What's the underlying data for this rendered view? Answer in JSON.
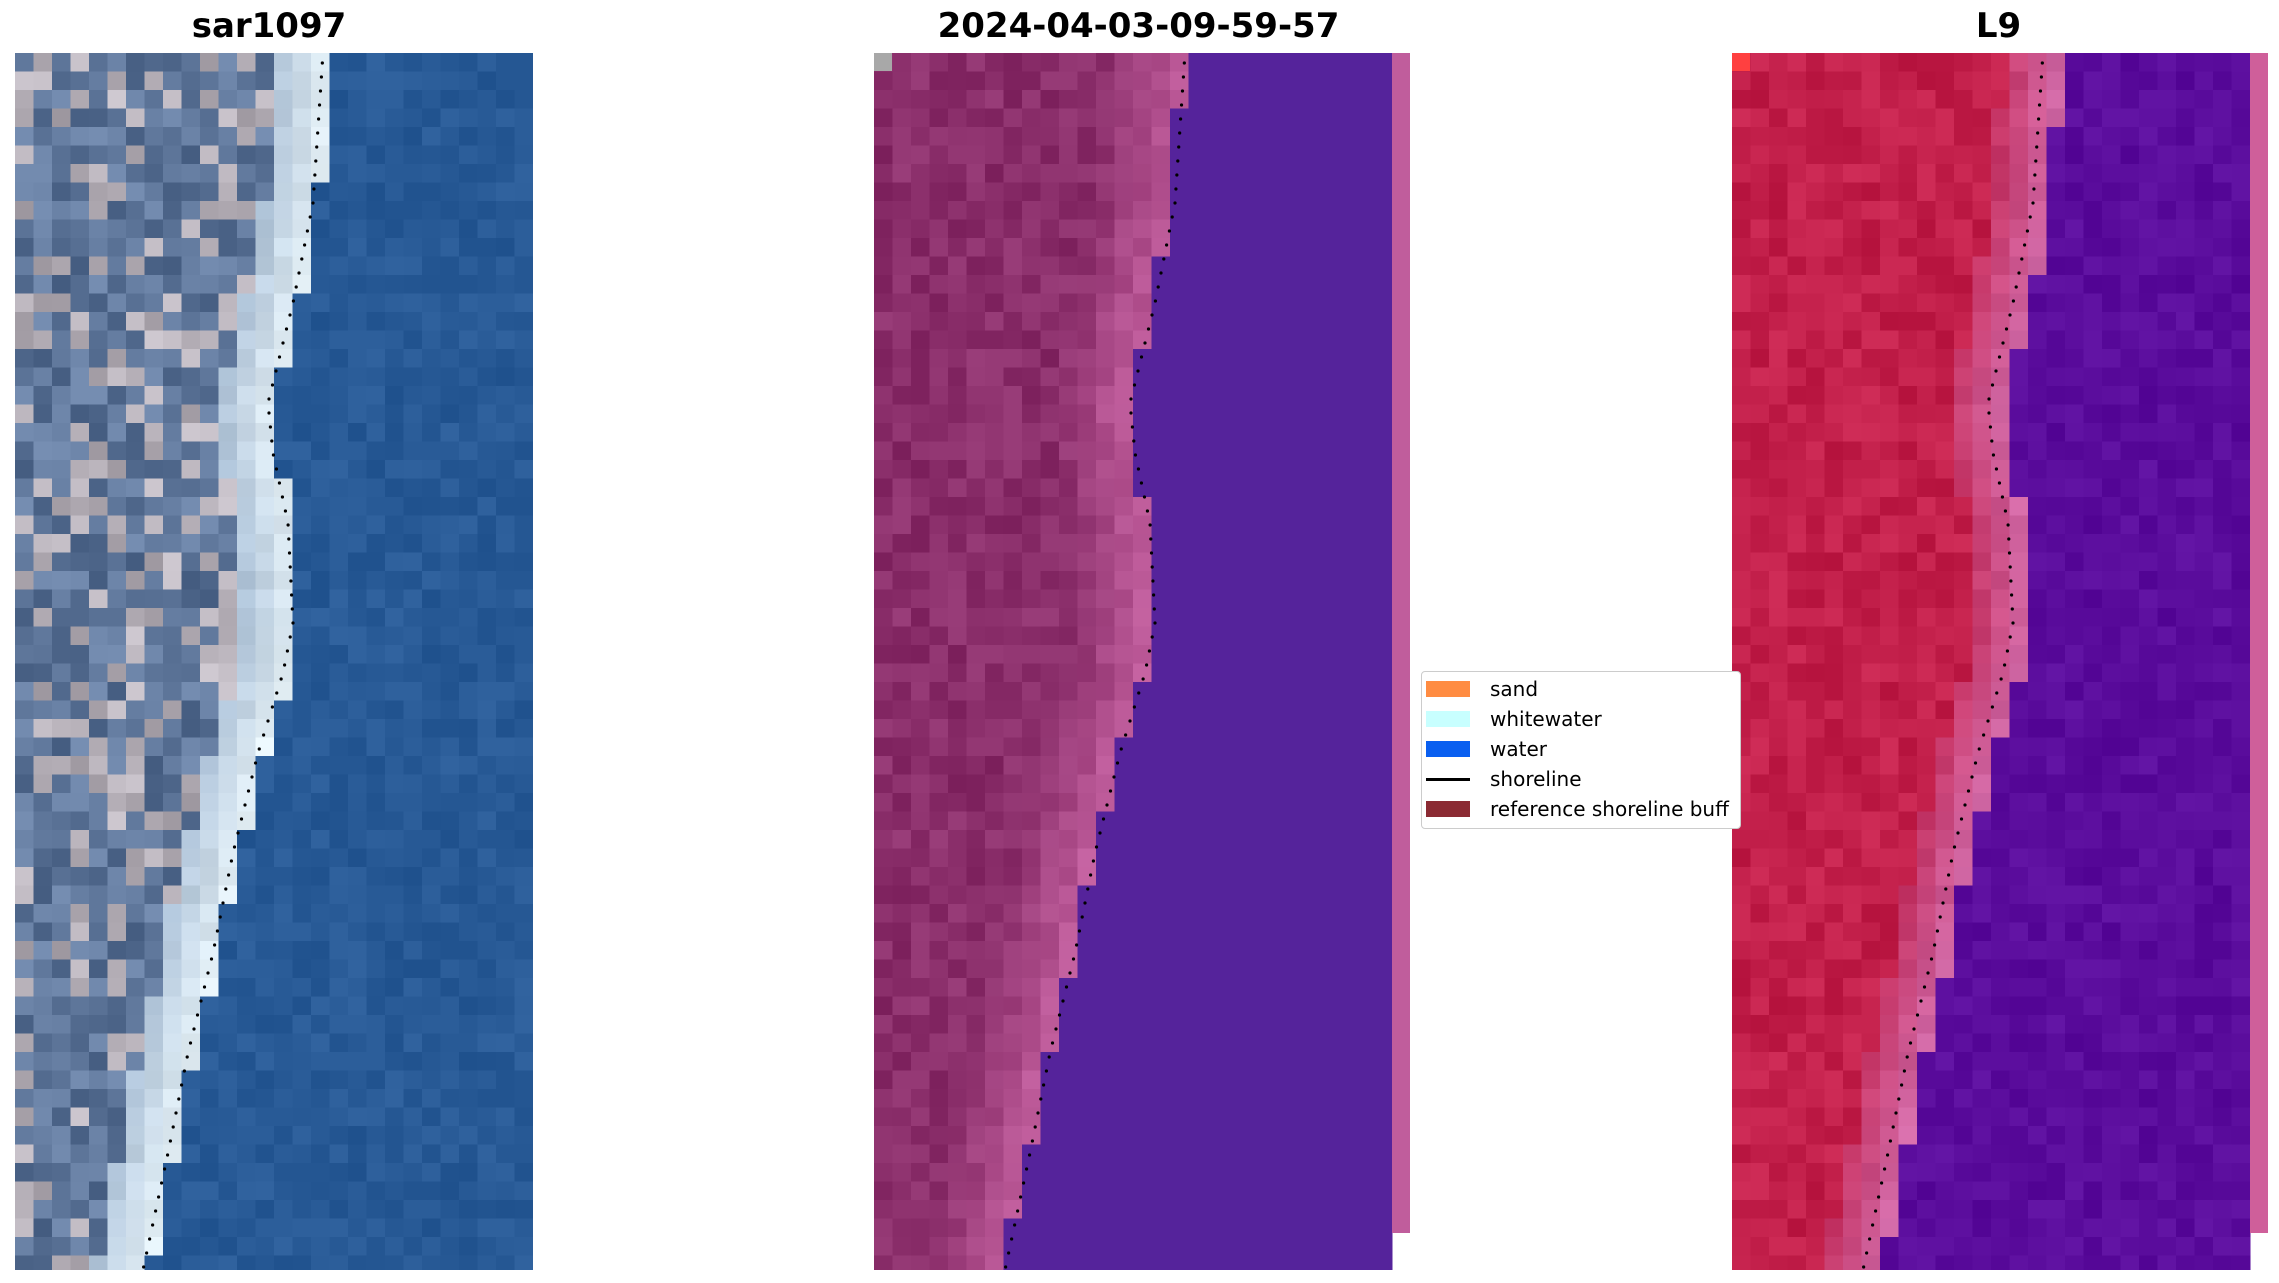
{
  "panels": [
    {
      "id": "rgb",
      "title": "sar1097"
    },
    {
      "id": "classified",
      "title": "2024-04-03-09-59-57"
    },
    {
      "id": "index",
      "title": "L9"
    }
  ],
  "legend": {
    "items": [
      {
        "label": "sand",
        "color": "#ff8c42",
        "kind": "patch"
      },
      {
        "label": "whitewater",
        "color": "#c8ffff",
        "kind": "patch"
      },
      {
        "label": "water",
        "color": "#0a5ff0",
        "kind": "patch"
      },
      {
        "label": "shoreline",
        "color": "#000000",
        "kind": "line"
      },
      {
        "label": "reference shoreline buff",
        "color": "#8b2a33",
        "kind": "patch"
      }
    ]
  },
  "colors": {
    "rgb_water": "#285a96",
    "rgb_sand": "#e6f2f8",
    "classified_water": "#55239b",
    "classified_land": "#8a2e6a",
    "classified_buffer": "#c05d9c",
    "index_land": "#c21f4a",
    "index_water": "#5a0c9c",
    "index_buffer": "#cf5f9a"
  }
}
